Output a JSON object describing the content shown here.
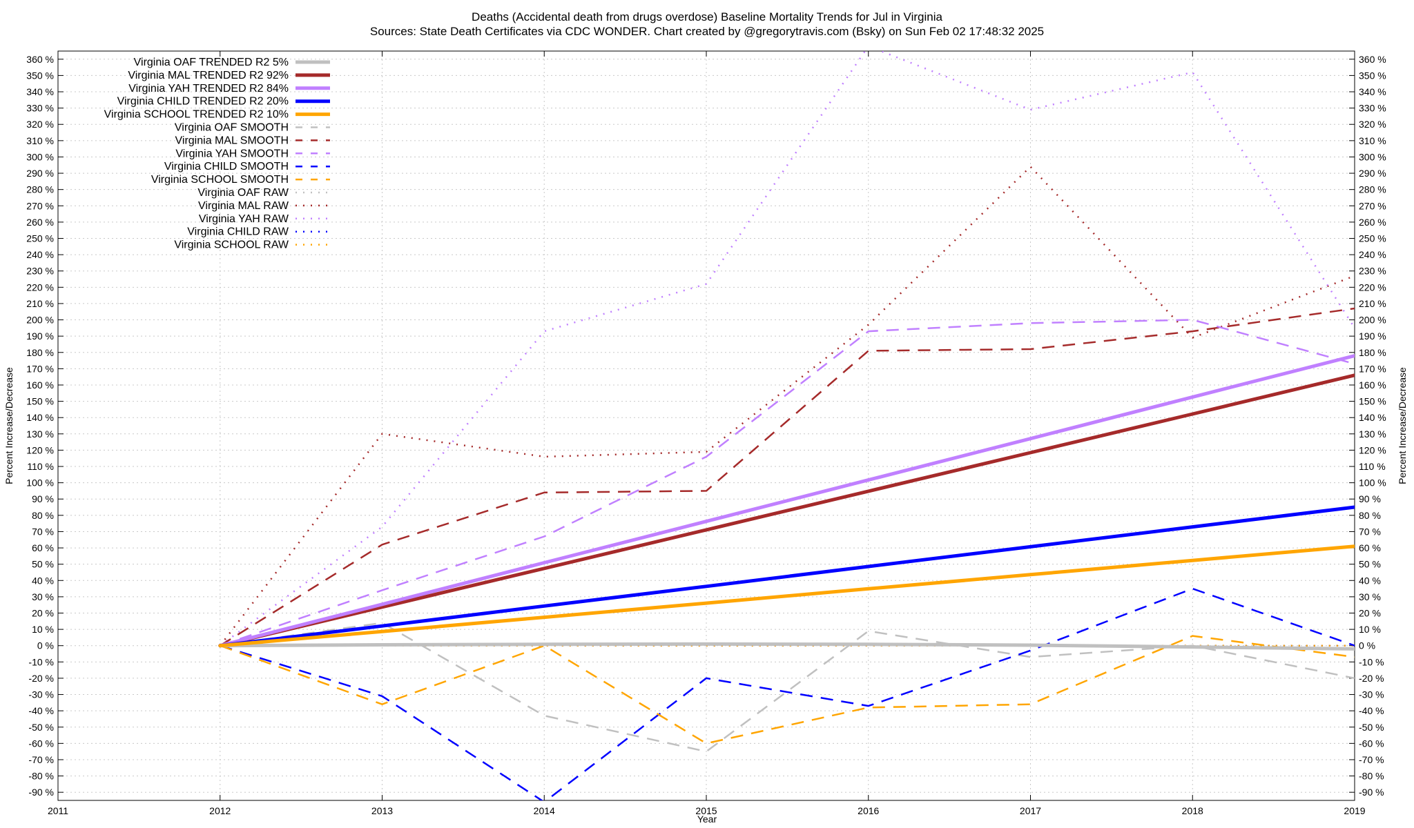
{
  "chart_data": {
    "type": "line",
    "title": "Deaths (Accidental death from drugs overdose)  Baseline Mortality Trends for Jul in Virginia",
    "subtitle": "Sources: State Death Certificates via CDC WONDER.              Chart created by @gregorytravis.com (Bsky) on Sun Feb 02 17:48:32 2025",
    "xlabel": "Year",
    "ylabel": "Percent Increase/Decrease",
    "y2label": "Percent Increase/Decrease",
    "xlim": [
      2011,
      2019
    ],
    "ylim": [
      -95,
      365
    ],
    "x_ticks": [
      "2011",
      "2012",
      "2013",
      "2014",
      "2015",
      "2016",
      "2017",
      "2018",
      "2019"
    ],
    "y_ticks": [
      "-90 %",
      "-80 %",
      "-70 %",
      "-60 %",
      "-50 %",
      "-40 %",
      "-30 %",
      "-20 %",
      "-10 %",
      "0 %",
      "10 %",
      "20 %",
      "30 %",
      "40 %",
      "50 %",
      "60 %",
      "70 %",
      "80 %",
      "90 %",
      "100 %",
      "110 %",
      "120 %",
      "130 %",
      "140 %",
      "150 %",
      "160 %",
      "170 %",
      "180 %",
      "190 %",
      "200 %",
      "210 %",
      "220 %",
      "230 %",
      "240 %",
      "250 %",
      "260 %",
      "270 %",
      "280 %",
      "290 %",
      "300 %",
      "310 %",
      "320 %",
      "330 %",
      "340 %",
      "350 %",
      "360 %"
    ],
    "grid": true,
    "legend_position": "top-left",
    "x": [
      2012,
      2013,
      2014,
      2015,
      2016,
      2017,
      2018,
      2019
    ],
    "series": [
      {
        "name": "Virginia OAF TRENDED R2  5%",
        "style": "trend",
        "color": "#c0c0c0",
        "values": [
          0,
          0.5,
          0.8,
          1,
          0.8,
          0.3,
          -0.8,
          -2
        ]
      },
      {
        "name": "Virginia MAL TRENDED R2  92%",
        "style": "trend",
        "color": "#a52a2a",
        "values": [
          0,
          23.7,
          47.4,
          71.1,
          94.8,
          118.5,
          142.2,
          166
        ]
      },
      {
        "name": "Virginia YAH TRENDED R2  84%",
        "style": "trend",
        "color": "#c080ff",
        "values": [
          0,
          25.4,
          50.9,
          76.3,
          101.7,
          127.1,
          152.6,
          178
        ]
      },
      {
        "name": "Virginia CHILD TRENDED R2  20%",
        "style": "trend",
        "color": "#0000ff",
        "values": [
          0,
          12.1,
          24.3,
          36.4,
          48.6,
          60.7,
          72.9,
          85
        ]
      },
      {
        "name": "Virginia SCHOOL TRENDED R2  10%",
        "style": "trend",
        "color": "#ffa500",
        "values": [
          0,
          8.7,
          17.4,
          26.1,
          34.9,
          43.6,
          52.3,
          61
        ]
      },
      {
        "name": "Virginia OAF SMOOTH",
        "style": "smooth",
        "color": "#c0c0c0",
        "values": [
          0,
          14,
          -43,
          -65,
          9,
          -7,
          0,
          -20
        ]
      },
      {
        "name": "Virginia MAL SMOOTH",
        "style": "smooth",
        "color": "#a52a2a",
        "values": [
          0,
          62,
          94,
          95,
          181,
          182,
          193,
          207
        ]
      },
      {
        "name": "Virginia YAH SMOOTH",
        "style": "smooth",
        "color": "#c080ff",
        "values": [
          0,
          34,
          67,
          116,
          193,
          198,
          200,
          173
        ]
      },
      {
        "name": "Virginia CHILD SMOOTH",
        "style": "smooth",
        "color": "#0000ff",
        "values": [
          0,
          -31,
          -96,
          -20,
          -37,
          -3,
          35,
          0
        ]
      },
      {
        "name": "Virginia SCHOOL SMOOTH",
        "style": "smooth",
        "color": "#ffa500",
        "values": [
          0,
          -36,
          0,
          -60,
          -38,
          -36,
          6,
          -7
        ]
      },
      {
        "name": "Virginia OAF RAW",
        "style": "raw",
        "color": "#c0c0c0",
        "values": [
          0,
          0,
          0,
          0,
          0,
          0,
          0,
          0
        ]
      },
      {
        "name": "Virginia MAL RAW",
        "style": "raw",
        "color": "#a52a2a",
        "values": [
          0,
          130,
          116,
          119,
          197,
          294,
          189,
          227
        ]
      },
      {
        "name": "Virginia YAH RAW",
        "style": "raw",
        "color": "#c080ff",
        "values": [
          0,
          73,
          193,
          222,
          368,
          329,
          352,
          195
        ]
      },
      {
        "name": "Virginia CHILD RAW",
        "style": "raw",
        "color": "#0000ff",
        "values": [
          0,
          0,
          0,
          0,
          0,
          0,
          0,
          0
        ]
      },
      {
        "name": "Virginia SCHOOL RAW",
        "style": "raw",
        "color": "#ffa500",
        "values": [
          0,
          0,
          0,
          0,
          0,
          0,
          0,
          0
        ]
      }
    ]
  }
}
